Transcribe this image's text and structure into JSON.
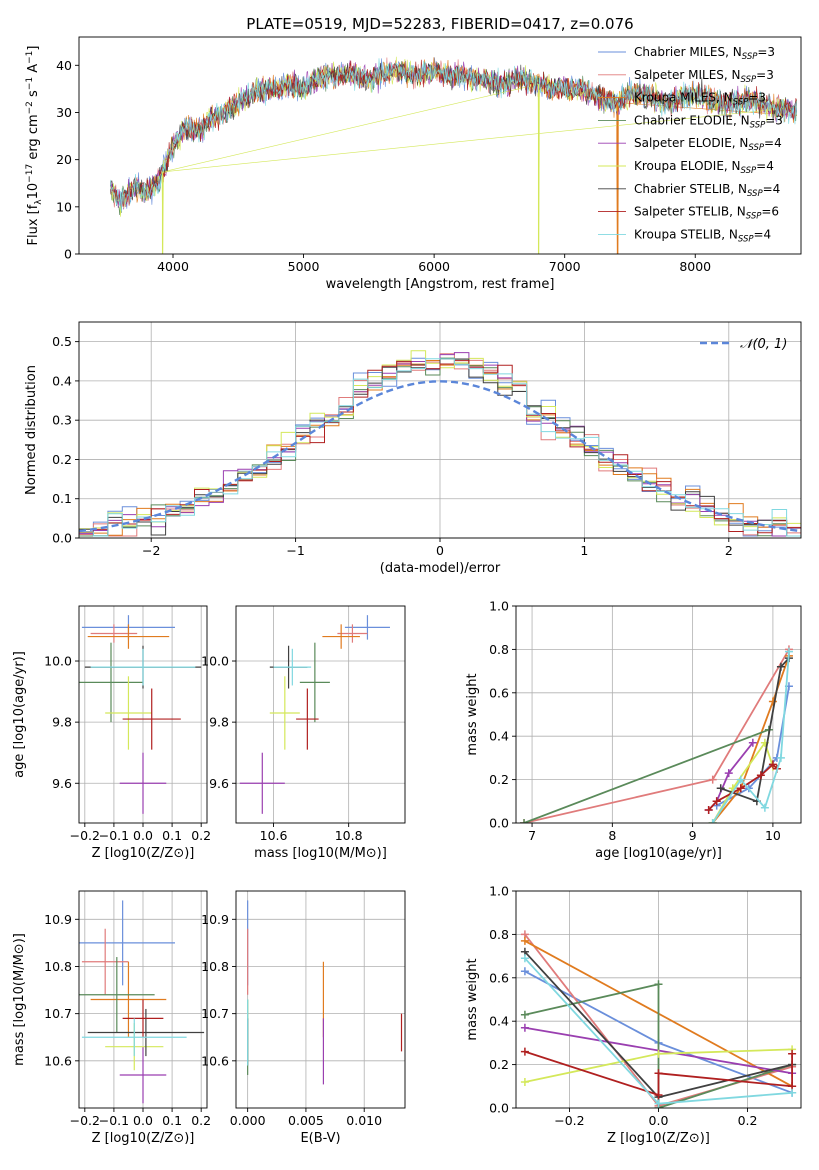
{
  "title": "PLATE=0519, MJD=52283, FIBERID=0417, z=0.076",
  "colors": [
    "#6a8fdb",
    "#e07b7b",
    "#e07b1f",
    "#5a8a5a",
    "#9a3fb0",
    "#d4e85a",
    "#404040",
    "#b02020",
    "#80d8e0"
  ],
  "chart_data": [
    {
      "id": "spectrum",
      "type": "line",
      "xlabel": "wavelength [Angstrom, rest frame]",
      "ylabel": "Flux [f_λ 10^-17 erg cm^-2 s^-1 A^-1]",
      "xlim": [
        3280,
        8810
      ],
      "ylim": [
        0,
        46
      ],
      "xticks": [
        4000,
        5000,
        6000,
        7000,
        8000
      ],
      "yticks": [
        0,
        10,
        20,
        30,
        40
      ],
      "grid": false,
      "legend_position": "top-right",
      "legend": [
        {
          "base": "Chabrier MILES, N",
          "sub": "SSP",
          "tail": "=3"
        },
        {
          "base": "Salpeter MILES, N",
          "sub": "SSP",
          "tail": "=3"
        },
        {
          "base": "Kroupa MILES, N",
          "sub": "SSP",
          "tail": "=3"
        },
        {
          "base": "Chabrier ELODIE, N",
          "sub": "SSP",
          "tail": "=3"
        },
        {
          "base": "Salpeter ELODIE, N",
          "sub": "SSP",
          "tail": "=4"
        },
        {
          "base": "Kroupa ELODIE, N",
          "sub": "SSP",
          "tail": "=4"
        },
        {
          "base": "Chabrier STELIB, N",
          "sub": "SSP",
          "tail": "=4"
        },
        {
          "base": "Salpeter STELIB, N",
          "sub": "SSP",
          "tail": "=6"
        },
        {
          "base": "Kroupa STELIB, N",
          "sub": "SSP",
          "tail": "=4"
        }
      ],
      "envelope": {
        "x": [
          3520,
          3600,
          3700,
          3800,
          3900,
          4000,
          4100,
          4200,
          4300,
          4400,
          4500,
          4600,
          4700,
          4800,
          4900,
          5000,
          5100,
          5200,
          5300,
          5400,
          5500,
          5600,
          5700,
          5800,
          5900,
          6000,
          6100,
          6200,
          6300,
          6400,
          6500,
          6600,
          6700,
          6800,
          6900,
          7000,
          7100,
          7200,
          7300,
          7400,
          7500,
          7600,
          7700,
          7800,
          7900,
          8000,
          8100,
          8200,
          8300,
          8400,
          8500,
          8600,
          8700,
          8780
        ],
        "y": [
          14,
          11,
          14,
          13,
          16,
          23,
          27,
          26,
          29,
          30,
          32,
          34,
          35,
          35,
          36,
          35,
          37,
          38,
          38,
          38,
          37,
          38,
          39,
          38,
          38,
          39,
          38,
          38,
          37,
          37,
          36,
          37,
          37,
          36,
          35,
          35,
          35,
          34,
          33,
          32,
          34,
          34,
          33,
          32,
          33,
          34,
          33,
          32,
          32,
          33,
          32,
          31,
          31,
          30
        ]
      },
      "spikes": [
        {
          "x": 3920,
          "y": 0,
          "series": 5
        },
        {
          "x": 6800,
          "y": 0,
          "series": 5
        },
        {
          "x": 7405,
          "y": 0,
          "series": 2
        }
      ]
    },
    {
      "id": "residual_hist",
      "type": "histogram",
      "xlabel": "(data-model)/error",
      "ylabel": "Normed distribution",
      "xlim": [
        -2.5,
        2.5
      ],
      "ylim": [
        0,
        0.55
      ],
      "xticks": [
        -2,
        -1,
        0,
        1,
        2
      ],
      "xtick_labels": [
        "−2",
        "−1",
        "0",
        "1",
        "2"
      ],
      "yticks": [
        0.0,
        0.1,
        0.2,
        0.3,
        0.4,
        0.5
      ],
      "grid": true,
      "legend_position": "top-right",
      "legend": [
        {
          "name": "𝒩(0, 1)",
          "style": "dashed"
        }
      ],
      "bin_width": 0.1,
      "bin_start": -2.5,
      "normal_curve": {
        "mu": 0,
        "sigma": 1
      }
    },
    {
      "id": "age_vs_Z",
      "type": "errorbar",
      "xlabel": "Z [log10(Z/Z⊙)]",
      "ylabel": "age [log10(age/yr)]",
      "xlim": [
        -0.22,
        0.22
      ],
      "ylim": [
        9.47,
        10.18
      ],
      "xticks": [
        -0.2,
        -0.1,
        0.0,
        0.1,
        0.2
      ],
      "xtick_labels": [
        "−0.2",
        "−0.1",
        "0.0",
        "0.1",
        "0.2"
      ],
      "yticks": [
        9.6,
        9.8,
        10.0
      ],
      "grid": true,
      "points": [
        {
          "x": -0.05,
          "y": 10.11,
          "xerr": 0.16,
          "yerr": 0.04,
          "series": 0
        },
        {
          "x": -0.1,
          "y": 10.09,
          "xerr": 0.08,
          "yerr": 0.03,
          "series": 1
        },
        {
          "x": -0.05,
          "y": 10.08,
          "xerr": 0.14,
          "yerr": 0.04,
          "series": 2
        },
        {
          "x": -0.11,
          "y": 9.93,
          "xerr": 0.11,
          "yerr": 0.13,
          "series": 3
        },
        {
          "x": 0.0,
          "y": 9.6,
          "xerr": 0.08,
          "yerr": 0.1,
          "series": 4
        },
        {
          "x": -0.05,
          "y": 9.83,
          "xerr": 0.08,
          "yerr": 0.12,
          "series": 5
        },
        {
          "x": 0.0,
          "y": 9.98,
          "xerr": 0.2,
          "yerr": 0.07,
          "series": 6
        },
        {
          "x": 0.03,
          "y": 9.81,
          "xerr": 0.1,
          "yerr": 0.1,
          "series": 7
        },
        {
          "x": 0.0,
          "y": 9.98,
          "xerr": 0.18,
          "yerr": 0.06,
          "series": 8
        }
      ]
    },
    {
      "id": "age_vs_mass",
      "type": "errorbar",
      "xlabel": "mass [log10(M/M⊙)]",
      "ylabel": "",
      "xlim": [
        10.5,
        10.95
      ],
      "ylim": [
        9.47,
        10.18
      ],
      "xticks": [
        10.6,
        10.8
      ],
      "yticks": [
        9.6,
        9.8,
        10.0
      ],
      "grid": true,
      "points": [
        {
          "x": 10.85,
          "y": 10.11,
          "xerr": 0.06,
          "yerr": 0.04,
          "series": 0
        },
        {
          "x": 10.81,
          "y": 10.09,
          "xerr": 0.04,
          "yerr": 0.03,
          "series": 1
        },
        {
          "x": 10.78,
          "y": 10.08,
          "xerr": 0.05,
          "yerr": 0.04,
          "series": 2
        },
        {
          "x": 10.71,
          "y": 9.93,
          "xerr": 0.04,
          "yerr": 0.13,
          "series": 3
        },
        {
          "x": 10.57,
          "y": 9.6,
          "xerr": 0.06,
          "yerr": 0.1,
          "series": 4
        },
        {
          "x": 10.63,
          "y": 9.83,
          "xerr": 0.04,
          "yerr": 0.12,
          "series": 5
        },
        {
          "x": 10.64,
          "y": 9.98,
          "xerr": 0.05,
          "yerr": 0.07,
          "series": 6
        },
        {
          "x": 10.69,
          "y": 9.81,
          "xerr": 0.03,
          "yerr": 0.1,
          "series": 7
        },
        {
          "x": 10.65,
          "y": 9.98,
          "xerr": 0.05,
          "yerr": 0.06,
          "series": 8
        }
      ]
    },
    {
      "id": "weight_vs_age",
      "type": "line",
      "xlabel": "age [log10(age/yr)]",
      "ylabel": "mass weight",
      "xlim": [
        6.8,
        10.35
      ],
      "ylim": [
        0.0,
        1.0
      ],
      "xticks": [
        7,
        8,
        9,
        10
      ],
      "yticks": [
        0.0,
        0.2,
        0.4,
        0.6,
        0.8,
        1.0
      ],
      "grid": true,
      "series": [
        {
          "series": 0,
          "x": [
            9.3,
            9.7,
            10.05,
            10.2
          ],
          "y": [
            0.08,
            0.16,
            0.3,
            0.63
          ]
        },
        {
          "series": 1,
          "x": [
            6.9,
            9.25,
            10.2
          ],
          "y": [
            0.0,
            0.2,
            0.8
          ]
        },
        {
          "series": 2,
          "x": [
            9.25,
            9.6,
            10.0,
            10.2
          ],
          "y": [
            0.0,
            0.16,
            0.56,
            0.77
          ]
        },
        {
          "series": 3,
          "x": [
            6.9,
            9.95
          ],
          "y": [
            0.0,
            0.43
          ]
        },
        {
          "series": 4,
          "x": [
            9.2,
            9.3,
            9.45,
            9.75
          ],
          "y": [
            0.06,
            0.1,
            0.23,
            0.37
          ]
        },
        {
          "series": 5,
          "x": [
            9.25,
            9.5,
            9.9,
            10.0
          ],
          "y": [
            0.0,
            0.16,
            0.37,
            0.26
          ]
        },
        {
          "series": 6,
          "x": [
            9.35,
            9.8,
            10.1,
            10.2
          ],
          "y": [
            0.16,
            0.1,
            0.72,
            0.76
          ]
        },
        {
          "series": 7,
          "x": [
            9.2,
            9.3,
            9.6,
            9.85,
            10.0,
            10.05
          ],
          "y": [
            0.06,
            0.1,
            0.16,
            0.22,
            0.27,
            0.25
          ]
        },
        {
          "series": 8,
          "x": [
            9.25,
            9.6,
            9.9,
            10.1,
            10.2
          ],
          "y": [
            0.0,
            0.2,
            0.07,
            0.3,
            0.79
          ]
        }
      ]
    },
    {
      "id": "mass_vs_Z",
      "type": "errorbar",
      "xlabel": "Z [log10(Z/Z⊙)]",
      "ylabel": "mass [log10(M/M⊙)]",
      "xlim": [
        -0.22,
        0.22
      ],
      "ylim": [
        10.5,
        10.96
      ],
      "xticks": [
        -0.2,
        -0.1,
        0.0,
        0.1,
        0.2
      ],
      "xtick_labels": [
        "−0.2",
        "−0.1",
        "0.0",
        "0.1",
        "0.2"
      ],
      "yticks": [
        10.6,
        10.7,
        10.8,
        10.9
      ],
      "grid": true,
      "points": [
        {
          "x": -0.07,
          "y": 10.85,
          "xerr": 0.18,
          "yerr": 0.09,
          "series": 0
        },
        {
          "x": -0.13,
          "y": 10.81,
          "xerr": 0.08,
          "yerr": 0.07,
          "series": 1
        },
        {
          "x": -0.05,
          "y": 10.73,
          "xerr": 0.13,
          "yerr": 0.08,
          "series": 2
        },
        {
          "x": -0.09,
          "y": 10.74,
          "xerr": 0.13,
          "yerr": 0.08,
          "series": 3
        },
        {
          "x": 0.0,
          "y": 10.57,
          "xerr": 0.08,
          "yerr": 0.06,
          "series": 4
        },
        {
          "x": -0.03,
          "y": 10.63,
          "xerr": 0.1,
          "yerr": 0.05,
          "series": 5
        },
        {
          "x": 0.01,
          "y": 10.66,
          "xerr": 0.2,
          "yerr": 0.05,
          "series": 6
        },
        {
          "x": 0.0,
          "y": 10.69,
          "xerr": 0.07,
          "yerr": 0.04,
          "series": 7
        },
        {
          "x": -0.03,
          "y": 10.65,
          "xerr": 0.18,
          "yerr": 0.04,
          "series": 8
        }
      ]
    },
    {
      "id": "mass_vs_EBV",
      "type": "errorbar",
      "xlabel": "E(B-V)",
      "ylabel": "",
      "xlim": [
        -0.001,
        0.0135
      ],
      "ylim": [
        10.5,
        10.96
      ],
      "xticks": [
        0.0,
        0.005,
        0.01
      ],
      "xtick_labels": [
        "0.000",
        "0.005",
        "0.010"
      ],
      "yticks": [
        10.6,
        10.7,
        10.8,
        10.9
      ],
      "grid": true,
      "points": [
        {
          "x": 0.0,
          "y": 10.85,
          "xerr": 0.0,
          "yerr": 0.09,
          "series": 0
        },
        {
          "x": 0.0,
          "y": 10.81,
          "xerr": 0.0,
          "yerr": 0.07,
          "series": 1
        },
        {
          "x": 0.0065,
          "y": 10.73,
          "xerr": 0.0,
          "yerr": 0.08,
          "series": 2
        },
        {
          "x": 0.0,
          "y": 10.65,
          "xerr": 0.0,
          "yerr": 0.08,
          "series": 3
        },
        {
          "x": 0.0065,
          "y": 10.62,
          "xerr": 0.0,
          "yerr": 0.07,
          "series": 4
        },
        {
          "x": 0.0,
          "y": 10.66,
          "xerr": 0.0,
          "yerr": 0.07,
          "series": 5
        },
        {
          "x": 0.0,
          "y": 10.64,
          "xerr": 0.0,
          "yerr": 0.05,
          "series": 6
        },
        {
          "x": 0.0132,
          "y": 10.66,
          "xerr": 0.0,
          "yerr": 0.04,
          "series": 7
        },
        {
          "x": 0.0,
          "y": 10.66,
          "xerr": 0.0,
          "yerr": 0.07,
          "series": 8
        }
      ]
    },
    {
      "id": "weight_vs_Z",
      "type": "line",
      "xlabel": "Z [log10(Z/Z⊙)]",
      "ylabel": "mass weight",
      "xlim": [
        -0.32,
        0.32
      ],
      "ylim": [
        0.0,
        1.0
      ],
      "xticks": [
        -0.2,
        0.0,
        0.2
      ],
      "xtick_labels": [
        "−0.2",
        "0.0",
        "0.2"
      ],
      "yticks": [
        0.0,
        0.2,
        0.4,
        0.6,
        0.8,
        1.0
      ],
      "grid": true,
      "series": [
        {
          "series": 0,
          "x": [
            -0.3,
            0.0,
            0.3
          ],
          "y": [
            0.63,
            0.3,
            0.07
          ]
        },
        {
          "series": 1,
          "x": [
            -0.3,
            0.0,
            0.3
          ],
          "y": [
            0.8,
            0.01,
            0.19
          ]
        },
        {
          "series": 2,
          "x": [
            -0.3,
            0.3
          ],
          "y": [
            0.77,
            0.1
          ]
        },
        {
          "series": 3,
          "x": [
            -0.3,
            0.0,
            0.0,
            0.3
          ],
          "y": [
            0.43,
            0.57,
            0.0,
            0.2
          ]
        },
        {
          "series": 4,
          "x": [
            -0.3,
            0.3
          ],
          "y": [
            0.37,
            0.16
          ]
        },
        {
          "series": 5,
          "x": [
            -0.3,
            0.0,
            0.3
          ],
          "y": [
            0.12,
            0.25,
            0.27
          ]
        },
        {
          "series": 6,
          "x": [
            -0.3,
            0.0,
            0.3
          ],
          "y": [
            0.72,
            0.05,
            0.2
          ]
        },
        {
          "series": 7,
          "x": [
            -0.3,
            0.0,
            0.0,
            0.3,
            0.3
          ],
          "y": [
            0.26,
            0.06,
            0.16,
            0.1,
            0.25
          ]
        },
        {
          "series": 8,
          "x": [
            -0.3,
            0.0,
            0.3
          ],
          "y": [
            0.69,
            0.02,
            0.07
          ]
        }
      ]
    }
  ]
}
